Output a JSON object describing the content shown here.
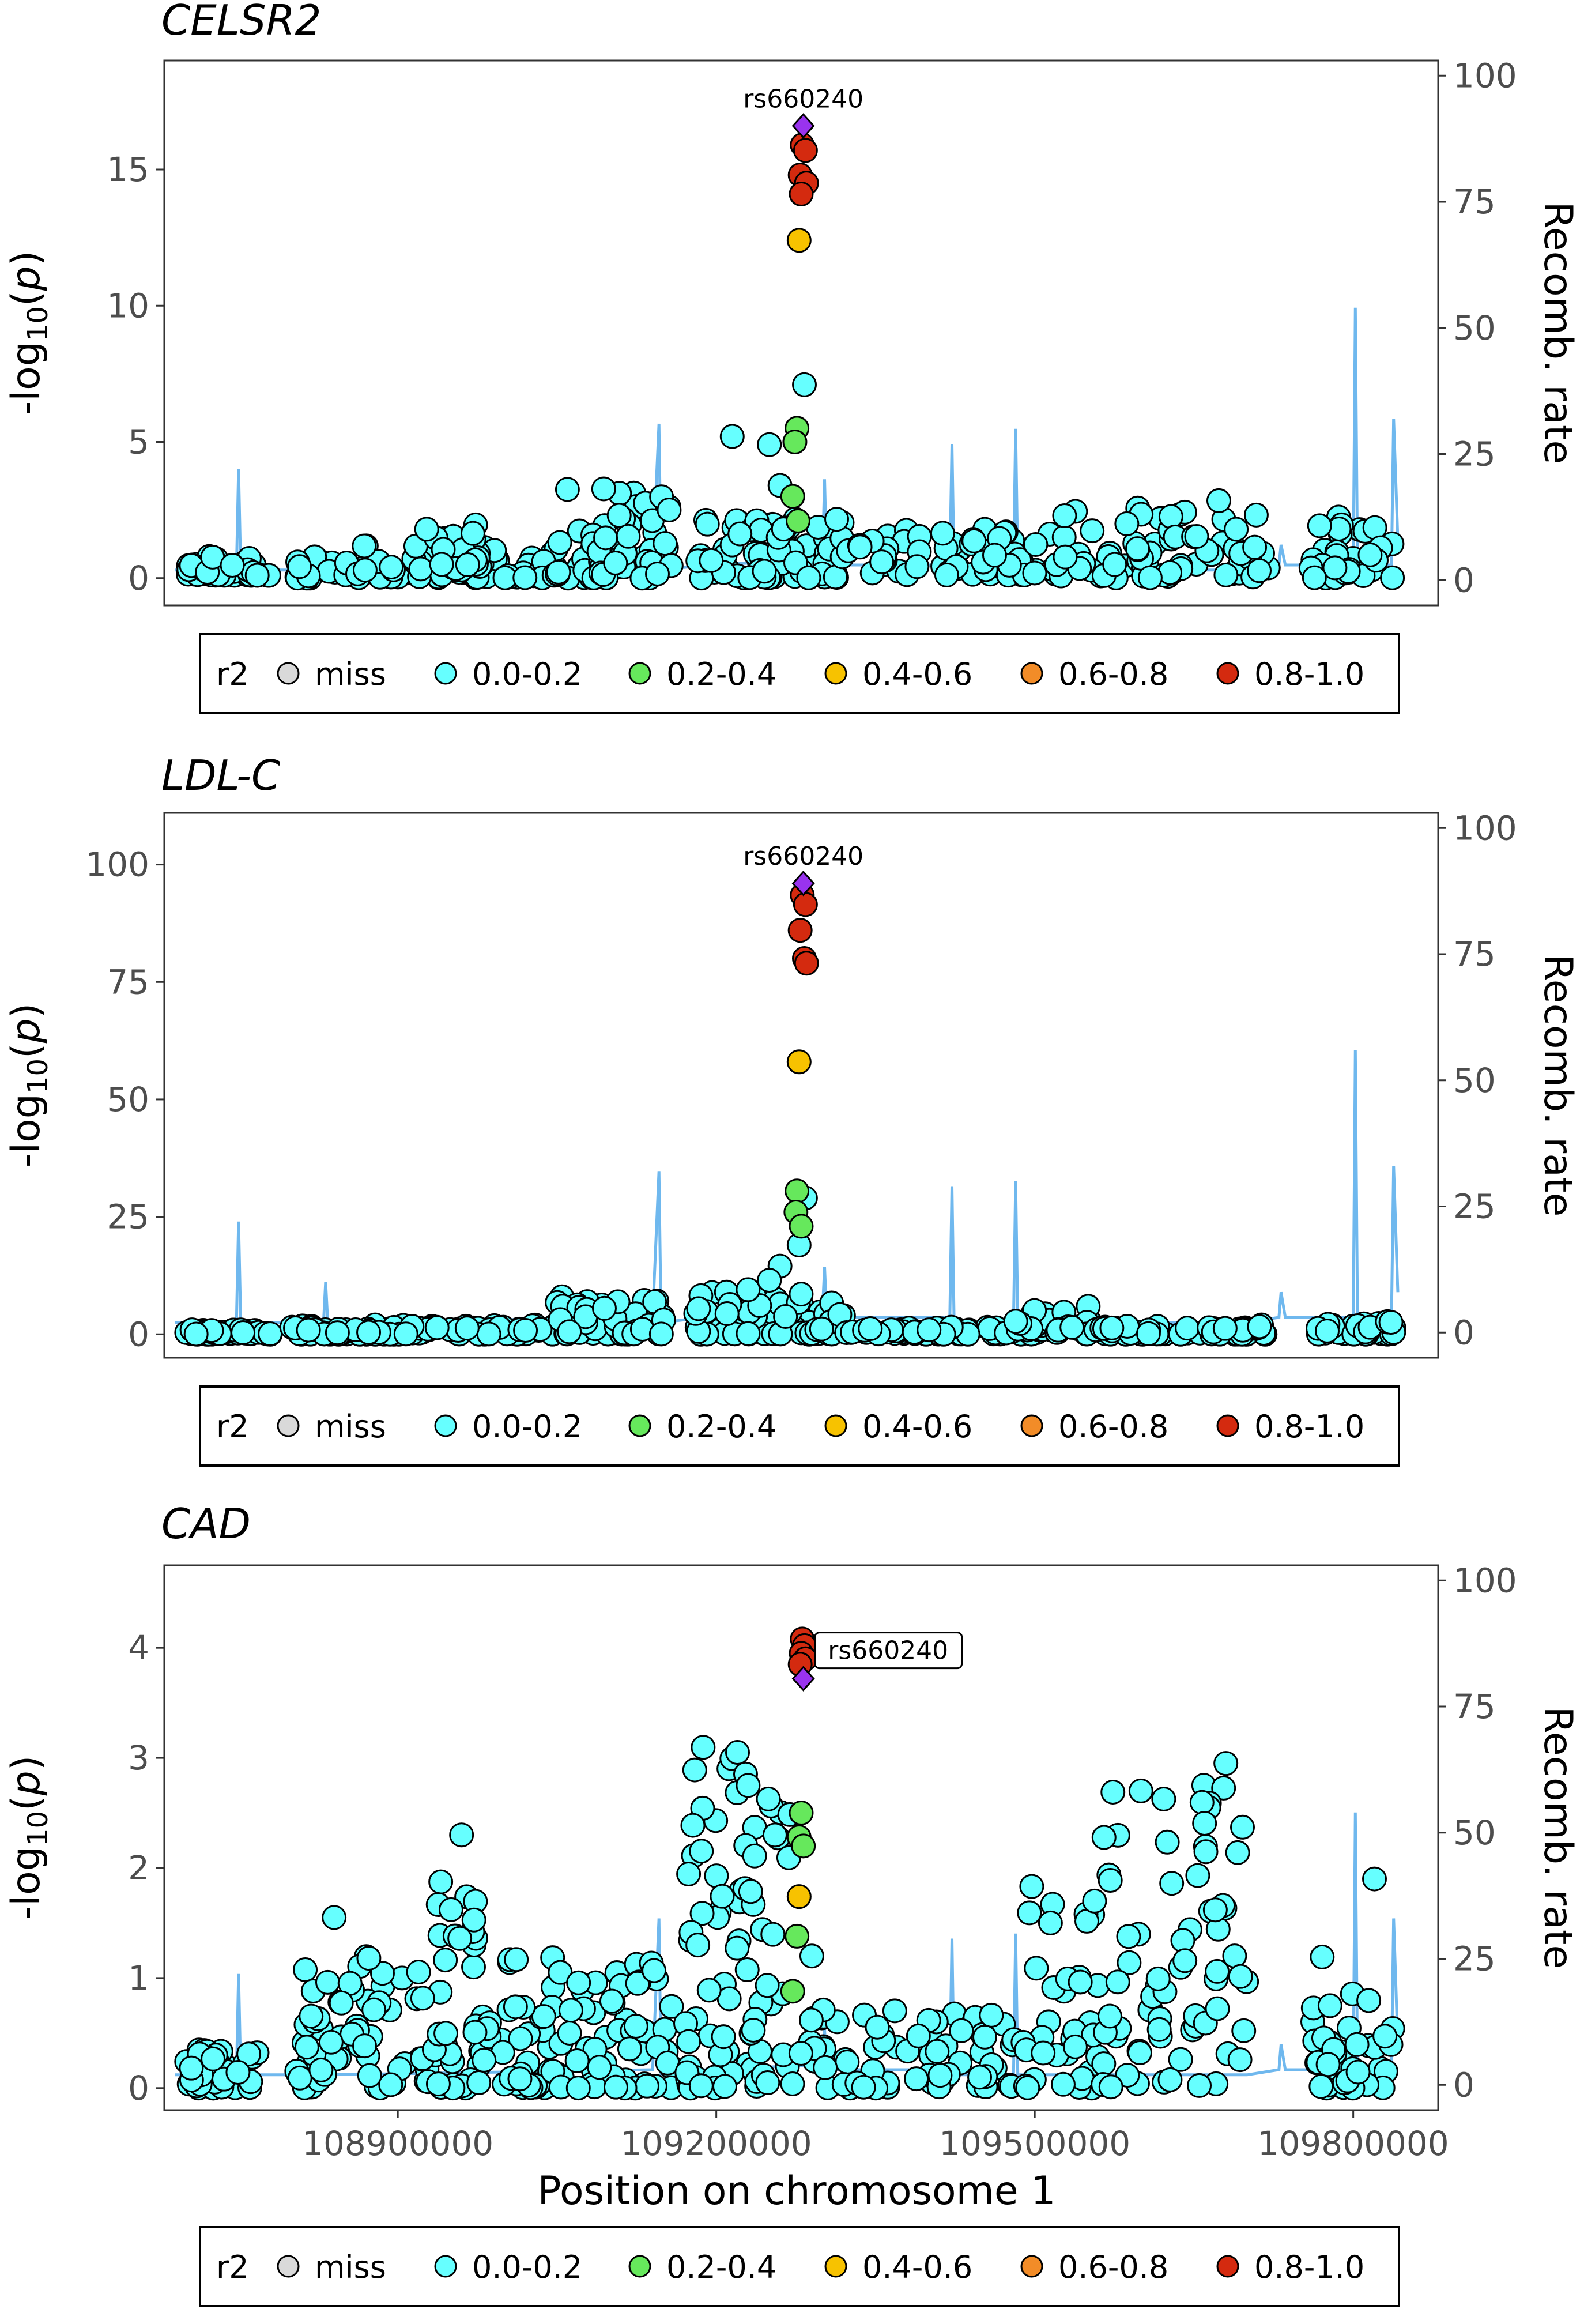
{
  "colors": {
    "miss": "#d9d9d9",
    "r0": "#66ffff",
    "r1": "#66e85c",
    "r2": "#f7c200",
    "r3": "#f28c28",
    "r4": "#d42a0f",
    "lead": "#9933ee",
    "recomb": "#6fb8ee"
  },
  "legend": {
    "title": "r2",
    "items": [
      {
        "label": "miss",
        "key": "miss"
      },
      {
        "label": "0.0-0.2",
        "key": "r0"
      },
      {
        "label": "0.2-0.4",
        "key": "r1"
      },
      {
        "label": "0.4-0.6",
        "key": "r2"
      },
      {
        "label": "0.6-0.8",
        "key": "r3"
      },
      {
        "label": "0.8-1.0",
        "key": "r4"
      }
    ]
  },
  "chart_data": [
    {
      "type": "scatter",
      "title": "CELSR2",
      "ylabel": "-log10(p)",
      "y2label": "Recomb. rate",
      "ylim": [
        -1,
        19
      ],
      "yticks": [
        0,
        5,
        10,
        15
      ],
      "y2lim": [
        -5,
        103
      ],
      "y2ticks": [
        0,
        25,
        50,
        75,
        100
      ],
      "xlim": [
        108680000,
        109880000
      ],
      "lead": {
        "label": "rs660240",
        "x": 109282000,
        "y": 16.6,
        "boxed": false
      },
      "ld_points": [
        {
          "x": 109281000,
          "y": 15.9,
          "r": "r4"
        },
        {
          "x": 109284000,
          "y": 15.7,
          "r": "r4"
        },
        {
          "x": 109279000,
          "y": 14.8,
          "r": "r4"
        },
        {
          "x": 109285000,
          "y": 14.5,
          "r": "r4"
        },
        {
          "x": 109280000,
          "y": 14.1,
          "r": "r4"
        },
        {
          "x": 109278000,
          "y": 12.4,
          "r": "r2"
        },
        {
          "x": 109276000,
          "y": 5.5,
          "r": "r1"
        },
        {
          "x": 109274000,
          "y": 5.0,
          "r": "r1"
        },
        {
          "x": 109272000,
          "y": 3.0,
          "r": "r1"
        },
        {
          "x": 109277000,
          "y": 2.1,
          "r": "r1"
        }
      ],
      "bg_seed": 11,
      "bg_clusters": [
        {
          "x0": 108700000,
          "x1": 108780000,
          "y0": 0.1,
          "y1": 0.8,
          "n": 45
        },
        {
          "x0": 108800000,
          "x1": 109050000,
          "y0": 0.0,
          "y1": 1.2,
          "n": 90
        },
        {
          "x0": 108920000,
          "x1": 108980000,
          "y0": 0.3,
          "y1": 2.0,
          "n": 22
        },
        {
          "x0": 109050000,
          "x1": 109160000,
          "y0": 0.0,
          "y1": 3.3,
          "n": 60
        },
        {
          "x0": 109180000,
          "x1": 109320000,
          "y0": 0.0,
          "y1": 2.2,
          "n": 70
        },
        {
          "x0": 109320000,
          "x1": 109520000,
          "y0": 0.1,
          "y1": 1.9,
          "n": 60
        },
        {
          "x0": 109520000,
          "x1": 109720000,
          "y0": 0.0,
          "y1": 3.0,
          "n": 70
        },
        {
          "x0": 109760000,
          "x1": 109840000,
          "y0": 0.0,
          "y1": 2.3,
          "n": 35
        }
      ],
      "bg_extra": [
        {
          "x": 109283000,
          "y": 7.1
        },
        {
          "x": 109250000,
          "y": 4.9
        },
        {
          "x": 109215000,
          "y": 5.2
        },
        {
          "x": 109260000,
          "y": 3.4
        }
      ],
      "recomb": [
        [
          108690000,
          2
        ],
        [
          108748000,
          2
        ],
        [
          108750000,
          22
        ],
        [
          108752000,
          2
        ],
        [
          108830000,
          2
        ],
        [
          108832000,
          5
        ],
        [
          108834000,
          2
        ],
        [
          109140000,
          3
        ],
        [
          109146000,
          31
        ],
        [
          109148000,
          2
        ],
        [
          109190000,
          3
        ],
        [
          109300000,
          4
        ],
        [
          109302000,
          20
        ],
        [
          109304000,
          3
        ],
        [
          109420000,
          3
        ],
        [
          109422000,
          27
        ],
        [
          109424000,
          2
        ],
        [
          109480000,
          2
        ],
        [
          109482000,
          30
        ],
        [
          109484000,
          2
        ],
        [
          109700000,
          2
        ],
        [
          109730000,
          3
        ],
        [
          109732000,
          7
        ],
        [
          109736000,
          3
        ],
        [
          109800000,
          3
        ],
        [
          109802000,
          54
        ],
        [
          109804000,
          3
        ],
        [
          109836000,
          3
        ],
        [
          109838000,
          32
        ],
        [
          109842000,
          8
        ]
      ]
    },
    {
      "type": "scatter",
      "title": "LDL-C",
      "ylabel": "-log10(p)",
      "y2label": "Recomb. rate",
      "ylim": [
        -5,
        111
      ],
      "yticks": [
        0,
        25,
        50,
        75,
        100
      ],
      "y2lim": [
        -5,
        103
      ],
      "y2ticks": [
        0,
        25,
        50,
        75,
        100
      ],
      "xlim": [
        108680000,
        109880000
      ],
      "lead": {
        "label": "rs660240",
        "x": 109282000,
        "y": 96.0,
        "boxed": false
      },
      "ld_points": [
        {
          "x": 109281000,
          "y": 93.5,
          "r": "r4"
        },
        {
          "x": 109284000,
          "y": 91.5,
          "r": "r4"
        },
        {
          "x": 109279000,
          "y": 86.0,
          "r": "r4"
        },
        {
          "x": 109283000,
          "y": 80.0,
          "r": "r4"
        },
        {
          "x": 109285000,
          "y": 79.0,
          "r": "r4"
        },
        {
          "x": 109278000,
          "y": 58.0,
          "r": "r2"
        },
        {
          "x": 109276000,
          "y": 30.5,
          "r": "r1"
        },
        {
          "x": 109275000,
          "y": 26.0,
          "r": "r1"
        },
        {
          "x": 109280000,
          "y": 23.0,
          "r": "r1"
        }
      ],
      "bg_seed": 23,
      "bg_clusters": [
        {
          "x0": 108700000,
          "x1": 108780000,
          "y0": 0.0,
          "y1": 1.0,
          "n": 45
        },
        {
          "x0": 108800000,
          "x1": 109050000,
          "y0": 0.0,
          "y1": 2.0,
          "n": 100
        },
        {
          "x0": 109050000,
          "x1": 109160000,
          "y0": 0.0,
          "y1": 8.0,
          "n": 60
        },
        {
          "x0": 109180000,
          "x1": 109320000,
          "y0": 0.0,
          "y1": 9.0,
          "n": 75
        },
        {
          "x0": 109320000,
          "x1": 109520000,
          "y0": 0.0,
          "y1": 1.5,
          "n": 60
        },
        {
          "x0": 109480000,
          "x1": 109560000,
          "y0": 1.0,
          "y1": 6.0,
          "n": 20
        },
        {
          "x0": 109520000,
          "x1": 109720000,
          "y0": 0.0,
          "y1": 2.0,
          "n": 60
        },
        {
          "x0": 109760000,
          "x1": 109840000,
          "y0": 0.0,
          "y1": 3.0,
          "n": 35
        }
      ],
      "bg_extra": [
        {
          "x": 109284000,
          "y": 29.0
        },
        {
          "x": 109278000,
          "y": 19.0
        },
        {
          "x": 109260000,
          "y": 14.5
        },
        {
          "x": 109250000,
          "y": 11.5
        },
        {
          "x": 109230000,
          "y": 9.5
        }
      ],
      "recomb": [
        [
          108690000,
          2
        ],
        [
          108748000,
          2
        ],
        [
          108750000,
          22
        ],
        [
          108752000,
          2
        ],
        [
          108830000,
          2
        ],
        [
          108832000,
          10
        ],
        [
          108834000,
          2
        ],
        [
          109140000,
          3
        ],
        [
          109146000,
          32
        ],
        [
          109148000,
          2
        ],
        [
          109190000,
          3
        ],
        [
          109300000,
          4
        ],
        [
          109302000,
          13
        ],
        [
          109304000,
          3
        ],
        [
          109420000,
          3
        ],
        [
          109422000,
          29
        ],
        [
          109424000,
          2
        ],
        [
          109480000,
          2
        ],
        [
          109482000,
          30
        ],
        [
          109484000,
          2
        ],
        [
          109700000,
          2
        ],
        [
          109730000,
          3
        ],
        [
          109732000,
          8
        ],
        [
          109736000,
          3
        ],
        [
          109800000,
          3
        ],
        [
          109802000,
          56
        ],
        [
          109804000,
          3
        ],
        [
          109836000,
          3
        ],
        [
          109838000,
          33
        ],
        [
          109842000,
          8
        ]
      ]
    },
    {
      "type": "scatter",
      "title": "CAD",
      "ylabel": "-log10(p)",
      "y2label": "Recomb. rate",
      "xlabel": "Position on chromosome 1",
      "xticks": [
        108900000,
        109200000,
        109500000,
        109800000
      ],
      "ylim": [
        -0.2,
        4.75
      ],
      "yticks": [
        0,
        1,
        2,
        3,
        4
      ],
      "y2lim": [
        -5,
        103
      ],
      "y2ticks": [
        0,
        25,
        50,
        75,
        100
      ],
      "xlim": [
        108680000,
        109880000
      ],
      "lead": {
        "label": "rs660240",
        "x": 109282000,
        "y": 3.72,
        "boxed": true
      },
      "ld_points": [
        {
          "x": 109281000,
          "y": 4.08,
          "r": "r4"
        },
        {
          "x": 109283000,
          "y": 4.02,
          "r": "r4"
        },
        {
          "x": 109280000,
          "y": 3.95,
          "r": "r4"
        },
        {
          "x": 109284000,
          "y": 3.9,
          "r": "r4"
        },
        {
          "x": 109279000,
          "y": 3.85,
          "r": "r4"
        },
        {
          "x": 109278000,
          "y": 1.74,
          "r": "r2"
        },
        {
          "x": 109280000,
          "y": 2.5,
          "r": "r1"
        },
        {
          "x": 109278000,
          "y": 2.28,
          "r": "r1"
        },
        {
          "x": 109282000,
          "y": 2.2,
          "r": "r1"
        },
        {
          "x": 109276000,
          "y": 1.38,
          "r": "r1"
        },
        {
          "x": 109272000,
          "y": 0.88,
          "r": "r1"
        }
      ],
      "bg_seed": 37,
      "bg_clusters": [
        {
          "x0": 108700000,
          "x1": 108780000,
          "y0": 0.0,
          "y1": 0.35,
          "n": 45
        },
        {
          "x0": 108800000,
          "x1": 109060000,
          "y0": 0.0,
          "y1": 1.2,
          "n": 130
        },
        {
          "x0": 108930000,
          "x1": 108980000,
          "y0": 1.3,
          "y1": 1.9,
          "n": 12
        },
        {
          "x0": 109060000,
          "x1": 109160000,
          "y0": 0.0,
          "y1": 1.2,
          "n": 50
        },
        {
          "x0": 109170000,
          "x1": 109270000,
          "y0": 0.0,
          "y1": 3.1,
          "n": 80
        },
        {
          "x0": 109270000,
          "x1": 109480000,
          "y0": 0.0,
          "y1": 0.8,
          "n": 70
        },
        {
          "x0": 109480000,
          "x1": 109560000,
          "y0": 0.0,
          "y1": 2.0,
          "n": 40
        },
        {
          "x0": 109560000,
          "x1": 109700000,
          "y0": 0.0,
          "y1": 2.8,
          "n": 70
        },
        {
          "x0": 109760000,
          "x1": 109840000,
          "y0": 0.0,
          "y1": 1.2,
          "n": 40
        }
      ],
      "bg_extra": [
        {
          "x": 109220000,
          "y": 3.05
        },
        {
          "x": 109230000,
          "y": 2.75
        },
        {
          "x": 108840000,
          "y": 1.55
        },
        {
          "x": 108960000,
          "y": 2.3
        },
        {
          "x": 109820000,
          "y": 1.9
        },
        {
          "x": 109680000,
          "y": 2.95
        },
        {
          "x": 109600000,
          "y": 2.7
        },
        {
          "x": 109290000,
          "y": 1.2
        }
      ],
      "recomb": [
        [
          108690000,
          2
        ],
        [
          108748000,
          2
        ],
        [
          108750000,
          22
        ],
        [
          108752000,
          2
        ],
        [
          108830000,
          2
        ],
        [
          108832000,
          10
        ],
        [
          108834000,
          2
        ],
        [
          109140000,
          3
        ],
        [
          109146000,
          33
        ],
        [
          109148000,
          2
        ],
        [
          109190000,
          3
        ],
        [
          109300000,
          4
        ],
        [
          109302000,
          11
        ],
        [
          109304000,
          3
        ],
        [
          109420000,
          3
        ],
        [
          109422000,
          29
        ],
        [
          109424000,
          2
        ],
        [
          109480000,
          2
        ],
        [
          109482000,
          30
        ],
        [
          109484000,
          2
        ],
        [
          109700000,
          2
        ],
        [
          109730000,
          3
        ],
        [
          109732000,
          8
        ],
        [
          109736000,
          3
        ],
        [
          109800000,
          3
        ],
        [
          109802000,
          54
        ],
        [
          109804000,
          3
        ],
        [
          109836000,
          3
        ],
        [
          109838000,
          33
        ],
        [
          109842000,
          8
        ]
      ]
    }
  ]
}
